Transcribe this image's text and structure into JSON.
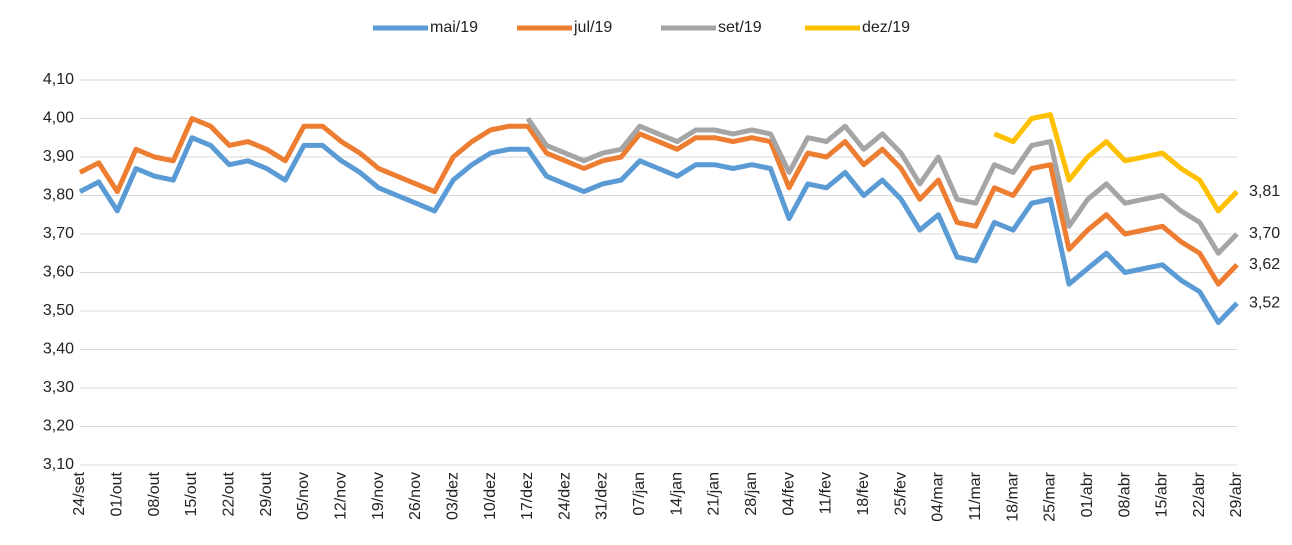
{
  "chart_data": {
    "type": "line",
    "categories": [
      "24/set",
      null,
      "01/out",
      null,
      "08/out",
      null,
      "15/out",
      null,
      "22/out",
      null,
      "29/out",
      null,
      "05/nov",
      null,
      "12/nov",
      null,
      "19/nov",
      null,
      "26/nov",
      null,
      "03/dez",
      null,
      "10/dez",
      null,
      "17/dez",
      null,
      "24/dez",
      null,
      "31/dez",
      null,
      "07/jan",
      null,
      "14/jan",
      null,
      "21/jan",
      null,
      "28/jan",
      null,
      "04/fev",
      null,
      "11/fev",
      null,
      "18/fev",
      null,
      "25/fev",
      null,
      "04/mar",
      null,
      "11/mar",
      null,
      "18/mar",
      null,
      "25/mar",
      null,
      "01/abr",
      null,
      "08/abr",
      null,
      "15/abr",
      null,
      "22/abr",
      null,
      "29/abr"
    ],
    "series": [
      {
        "name": "mai/19",
        "color": "#5b9bd5",
        "values": [
          3.81,
          3.835,
          3.76,
          3.87,
          3.85,
          3.84,
          3.95,
          3.93,
          3.88,
          3.89,
          3.87,
          3.84,
          3.93,
          3.93,
          3.89,
          3.86,
          3.82,
          3.8,
          3.78,
          3.76,
          3.84,
          3.88,
          3.91,
          3.92,
          3.92,
          3.85,
          3.83,
          3.81,
          3.83,
          3.84,
          3.89,
          3.87,
          3.85,
          3.88,
          3.88,
          3.87,
          3.88,
          3.87,
          3.74,
          3.83,
          3.82,
          3.86,
          3.8,
          3.84,
          3.79,
          3.71,
          3.75,
          3.64,
          3.63,
          3.73,
          3.71,
          3.78,
          3.79,
          3.57,
          3.61,
          3.65,
          3.6,
          3.61,
          3.62,
          3.58,
          3.55,
          3.47,
          3.52
        ],
        "value_labels": [
          null,
          null,
          null,
          null,
          null,
          null,
          null,
          null,
          null,
          null,
          null,
          null,
          null,
          null,
          null,
          null,
          null,
          null,
          null,
          null,
          null,
          null,
          null,
          null,
          null,
          null,
          null,
          null,
          null,
          null,
          null,
          null,
          null,
          null,
          null,
          null,
          null,
          null,
          null,
          null,
          null,
          null,
          null,
          null,
          null,
          null,
          null,
          null,
          null,
          null,
          null,
          null,
          null,
          null,
          null,
          null,
          null,
          null,
          null,
          null,
          null,
          null,
          "3,52"
        ]
      },
      {
        "name": "jul/19",
        "color": "#ed7d31",
        "values": [
          3.86,
          3.885,
          3.81,
          3.92,
          3.9,
          3.89,
          4.0,
          3.98,
          3.93,
          3.94,
          3.92,
          3.89,
          3.98,
          3.98,
          3.94,
          3.91,
          3.87,
          3.85,
          3.83,
          3.81,
          3.9,
          3.94,
          3.97,
          3.98,
          3.98,
          3.91,
          3.89,
          3.87,
          3.89,
          3.9,
          3.96,
          3.94,
          3.92,
          3.95,
          3.95,
          3.94,
          3.95,
          3.94,
          3.82,
          3.91,
          3.9,
          3.94,
          3.88,
          3.92,
          3.87,
          3.79,
          3.84,
          3.73,
          3.72,
          3.82,
          3.8,
          3.87,
          3.88,
          3.66,
          3.71,
          3.75,
          3.7,
          3.71,
          3.72,
          3.68,
          3.65,
          3.57,
          3.62
        ],
        "value_labels": [
          null,
          null,
          null,
          null,
          null,
          null,
          null,
          null,
          null,
          null,
          null,
          null,
          null,
          null,
          null,
          null,
          null,
          null,
          null,
          null,
          null,
          null,
          null,
          null,
          null,
          null,
          null,
          null,
          null,
          null,
          null,
          null,
          null,
          null,
          null,
          null,
          null,
          null,
          null,
          null,
          null,
          null,
          null,
          null,
          null,
          null,
          null,
          null,
          null,
          null,
          null,
          null,
          null,
          null,
          null,
          null,
          null,
          null,
          null,
          null,
          null,
          null,
          "3,62"
        ]
      },
      {
        "name": "set/19",
        "color": "#a5a5a5",
        "values": [
          null,
          null,
          null,
          null,
          null,
          null,
          null,
          null,
          null,
          null,
          null,
          null,
          null,
          null,
          null,
          null,
          null,
          null,
          null,
          null,
          null,
          null,
          null,
          null,
          4.0,
          3.93,
          3.91,
          3.89,
          3.91,
          3.92,
          3.98,
          3.96,
          3.94,
          3.97,
          3.97,
          3.96,
          3.97,
          3.96,
          3.86,
          3.95,
          3.94,
          3.98,
          3.92,
          3.96,
          3.91,
          3.83,
          3.9,
          3.79,
          3.78,
          3.88,
          3.86,
          3.93,
          3.94,
          3.72,
          3.79,
          3.83,
          3.78,
          3.79,
          3.8,
          3.76,
          3.73,
          3.65,
          3.7
        ],
        "value_labels": [
          null,
          null,
          null,
          null,
          null,
          null,
          null,
          null,
          null,
          null,
          null,
          null,
          null,
          null,
          null,
          null,
          null,
          null,
          null,
          null,
          null,
          null,
          null,
          null,
          null,
          null,
          null,
          null,
          null,
          null,
          null,
          null,
          null,
          null,
          null,
          null,
          null,
          null,
          null,
          null,
          null,
          null,
          null,
          null,
          null,
          null,
          null,
          null,
          null,
          null,
          null,
          null,
          null,
          null,
          null,
          null,
          null,
          null,
          null,
          null,
          null,
          null,
          "3,70"
        ]
      },
      {
        "name": "dez/19",
        "color": "#ffc000",
        "values": [
          null,
          null,
          null,
          null,
          null,
          null,
          null,
          null,
          null,
          null,
          null,
          null,
          null,
          null,
          null,
          null,
          null,
          null,
          null,
          null,
          null,
          null,
          null,
          null,
          null,
          null,
          null,
          null,
          null,
          null,
          null,
          null,
          null,
          null,
          null,
          null,
          null,
          null,
          null,
          null,
          null,
          null,
          null,
          null,
          null,
          null,
          null,
          null,
          null,
          3.96,
          3.94,
          4.0,
          4.01,
          3.84,
          3.9,
          3.94,
          3.89,
          3.9,
          3.91,
          3.87,
          3.84,
          3.76,
          3.81
        ],
        "value_labels": [
          null,
          null,
          null,
          null,
          null,
          null,
          null,
          null,
          null,
          null,
          null,
          null,
          null,
          null,
          null,
          null,
          null,
          null,
          null,
          null,
          null,
          null,
          null,
          null,
          null,
          null,
          null,
          null,
          null,
          null,
          null,
          null,
          null,
          null,
          null,
          null,
          null,
          null,
          null,
          null,
          null,
          null,
          null,
          null,
          null,
          null,
          null,
          null,
          null,
          null,
          null,
          null,
          null,
          null,
          null,
          null,
          null,
          null,
          null,
          null,
          null,
          null,
          "3,81"
        ]
      }
    ],
    "ylim": [
      3.1,
      4.1
    ],
    "yticks": [
      {
        "value": 3.1,
        "label": "3,10"
      },
      {
        "value": 3.2,
        "label": "3,20"
      },
      {
        "value": 3.3,
        "label": "3,30"
      },
      {
        "value": 3.4,
        "label": "3,40"
      },
      {
        "value": 3.5,
        "label": "3,50"
      },
      {
        "value": 3.6,
        "label": "3,60"
      },
      {
        "value": 3.7,
        "label": "3,70"
      },
      {
        "value": 3.8,
        "label": "3,80"
      },
      {
        "value": 3.9,
        "label": "3,90"
      },
      {
        "value": 4.0,
        "label": "4,00"
      },
      {
        "value": 4.1,
        "label": "4,10"
      }
    ],
    "grid": true,
    "legend": "top"
  }
}
